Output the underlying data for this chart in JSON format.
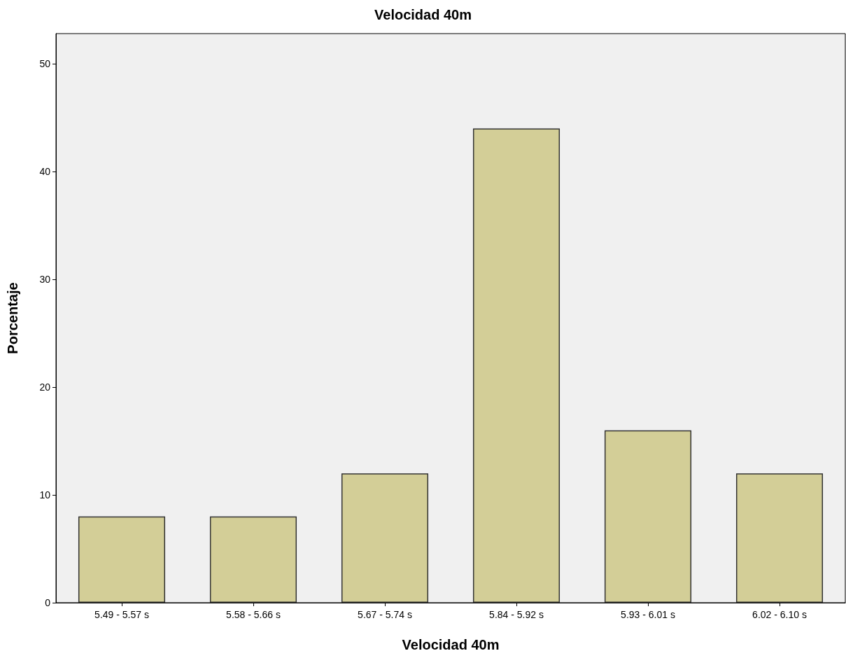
{
  "chart_data": {
    "type": "bar",
    "title": "Velocidad 40m",
    "xlabel": "Velocidad 40m",
    "ylabel": "Porcentaje",
    "categories": [
      "5.49 - 5.57 s",
      "5.58 - 5.66 s",
      "5.67 - 5.74 s",
      "5.84 - 5.92 s",
      "5.93 - 6.01 s",
      "6.02 - 6.10 s"
    ],
    "values": [
      8,
      8,
      12,
      44,
      16,
      12
    ],
    "color": "#d3ce97",
    "ylim": [
      0,
      52.8
    ],
    "yticks": [
      0,
      10,
      20,
      30,
      40,
      50
    ],
    "grid": false
  }
}
